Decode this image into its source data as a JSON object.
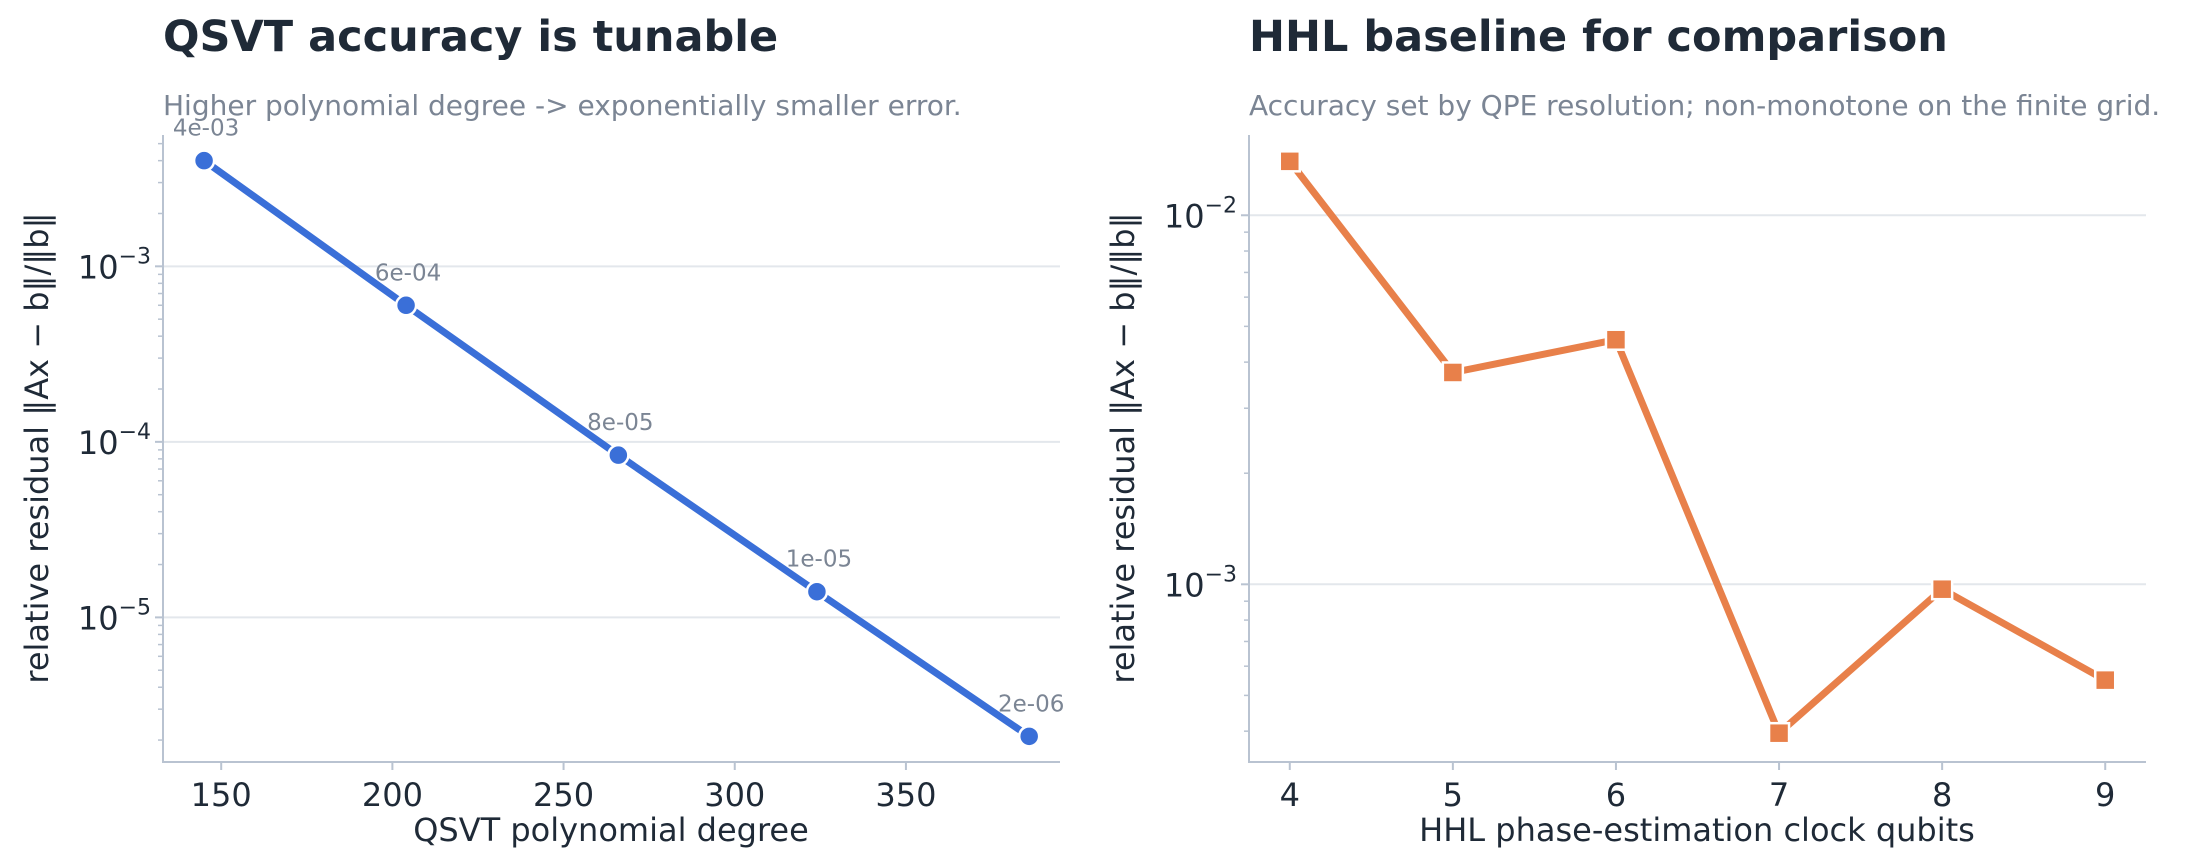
{
  "chart_data": [
    {
      "type": "line",
      "title": "QSVT accuracy is tunable",
      "subtitle": "Higher polynomial degree -> exponentially smaller error.",
      "xlabel": "QSVT polynomial degree",
      "ylabel": "relative residual  ‖Ax − b‖/‖b‖",
      "yscale": "log",
      "xlim": [
        133,
        395
      ],
      "ylim": [
        1.5e-06,
        0.0056
      ],
      "xticks": [
        150,
        200,
        250,
        300,
        350
      ],
      "yticks": [
        0.001,
        0.0001,
        1e-05
      ],
      "grid": "y-major",
      "marker": "circle",
      "color": "#3a6fd8",
      "series": [
        {
          "x": [
            145,
            204,
            266,
            324,
            386
          ],
          "values": [
            0.004,
            0.0006,
            8.4e-05,
            1.4e-05,
            2.1e-06
          ],
          "labels": [
            "4e-03",
            "6e-04",
            "8e-05",
            "1e-05",
            "2e-06"
          ]
        }
      ]
    },
    {
      "type": "line",
      "title": "HHL baseline for comparison",
      "subtitle": "Accuracy set by QPE resolution; non-monotone on the finite grid.",
      "xlabel": "HHL phase-estimation clock qubits",
      "ylabel": "relative residual  ‖Ax − b‖/‖b‖",
      "yscale": "log",
      "xlim": [
        3.75,
        9.25
      ],
      "ylim": [
        0.00033,
        0.0165
      ],
      "xticks": [
        4,
        5,
        6,
        7,
        8,
        9
      ],
      "yticks": [
        0.01,
        0.001
      ],
      "grid": "y-major",
      "marker": "square",
      "color": "#e8804a",
      "series": [
        {
          "x": [
            4,
            5,
            6,
            7,
            8,
            9
          ],
          "values": [
            0.014,
            0.00375,
            0.0046,
            0.000395,
            0.00097,
            0.00055
          ]
        }
      ]
    }
  ]
}
